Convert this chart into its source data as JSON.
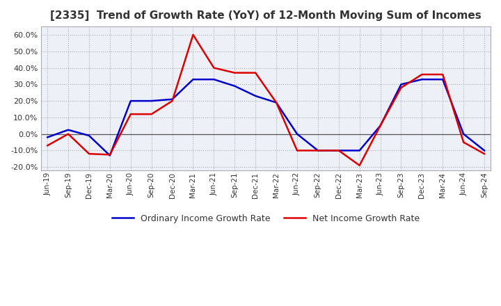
{
  "title": "[2335]  Trend of Growth Rate (YoY) of 12-Month Moving Sum of Incomes",
  "title_fontsize": 11,
  "ylim": [
    -22,
    65
  ],
  "yticks": [
    -20,
    -10,
    0,
    10,
    20,
    30,
    40,
    50,
    60
  ],
  "background_color": "#ffffff",
  "plot_bg_color": "#eef0f8",
  "line1_color": "#0000cc",
  "line2_color": "#dd0000",
  "line1_label": "Ordinary Income Growth Rate",
  "line2_label": "Net Income Growth Rate",
  "dates": [
    "Jun-19",
    "Sep-19",
    "Dec-19",
    "Mar-20",
    "Jun-20",
    "Sep-20",
    "Dec-20",
    "Mar-21",
    "Jun-21",
    "Sep-21",
    "Dec-21",
    "Mar-22",
    "Jun-22",
    "Sep-22",
    "Dec-22",
    "Mar-23",
    "Jun-23",
    "Sep-23",
    "Dec-23",
    "Mar-24",
    "Jun-24",
    "Sep-24"
  ],
  "ordinary_income_growth": [
    -2.0,
    2.5,
    -1.0,
    -13.0,
    20.0,
    20.0,
    21.0,
    33.0,
    33.0,
    29.0,
    23.0,
    19.0,
    0.0,
    -10.0,
    -10.0,
    -10.0,
    5.0,
    30.0,
    33.0,
    33.0,
    0.0,
    -10.0
  ],
  "net_income_growth": [
    -7.0,
    0.0,
    -12.0,
    -12.5,
    12.0,
    12.0,
    20.0,
    60.0,
    40.0,
    37.0,
    37.0,
    19.0,
    -10.0,
    -10.0,
    -10.0,
    -19.0,
    5.0,
    28.0,
    36.0,
    36.0,
    -5.0,
    -12.0
  ]
}
